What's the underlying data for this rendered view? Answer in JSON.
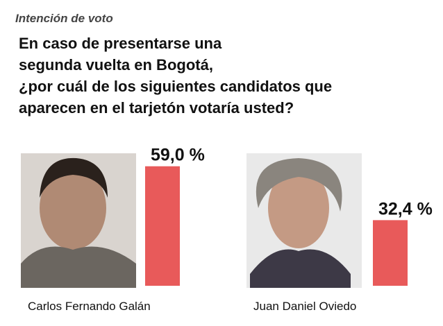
{
  "chart_data": {
    "type": "bar",
    "subtitle": "Intención de voto",
    "title": "En caso de presentarse una\nsegunda vuelta en Bogotá,\n¿por cuál de los siguientes candidatos que\naparecen en el tarjetón votaría usted?",
    "categories": [
      "Carlos Fernando Galán",
      "Juan Daniel Oviedo"
    ],
    "values": [
      59.0,
      32.4
    ],
    "value_labels": [
      "59,0 %",
      "32,4 %"
    ],
    "color": "#e85a5a"
  }
}
